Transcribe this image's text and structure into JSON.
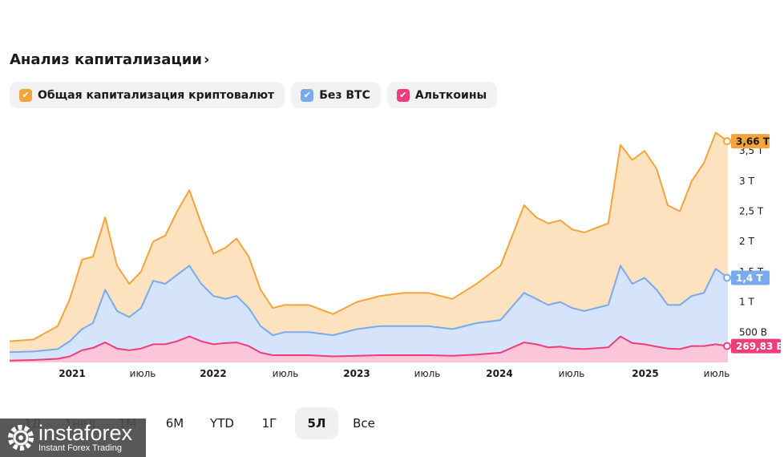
{
  "header": {
    "title": "Анализ капитализации",
    "chevron": "›"
  },
  "legend": [
    {
      "label": "Общая капитализация криптовалют",
      "color": "#f5a33b",
      "checked": true
    },
    {
      "label": "Без BTC",
      "color": "#79a9ef",
      "checked": true
    },
    {
      "label": "Альткоины",
      "color": "#ee3d7a",
      "checked": true
    }
  ],
  "ranges": [
    {
      "label": "1Д",
      "active": false
    },
    {
      "label": "1нед",
      "active": false
    },
    {
      "label": "1М",
      "active": false
    },
    {
      "label": "6М",
      "active": false
    },
    {
      "label": "YTD",
      "active": false
    },
    {
      "label": "1Г",
      "active": false
    },
    {
      "label": "5Л",
      "active": true
    },
    {
      "label": "Все",
      "active": false
    }
  ],
  "watermark": {
    "brand": "instaforex",
    "sub": "Instant Forex Trading"
  },
  "chart_data": {
    "type": "area",
    "x_ticks": [
      "2021",
      "июль",
      "2022",
      "июль",
      "2023",
      "июль",
      "2024",
      "июль",
      "2025",
      "июль"
    ],
    "y_ticks": [
      "500 B",
      "1 T",
      "1,5 T",
      "2 T",
      "2,5 T",
      "3 T",
      "3,5 T"
    ],
    "ylim": [
      0,
      3.9
    ],
    "x": [
      "2020-08",
      "2020-10",
      "2020-12",
      "2021-01",
      "2021-02",
      "2021-03",
      "2021-04",
      "2021-05",
      "2021-06",
      "2021-07",
      "2021-08",
      "2021-09",
      "2021-10",
      "2021-11",
      "2021-12",
      "2022-01",
      "2022-02",
      "2022-03",
      "2022-04",
      "2022-05",
      "2022-06",
      "2022-07",
      "2022-09",
      "2022-11",
      "2023-01",
      "2023-03",
      "2023-05",
      "2023-07",
      "2023-09",
      "2023-11",
      "2024-01",
      "2024-03",
      "2024-04",
      "2024-05",
      "2024-06",
      "2024-07",
      "2024-08",
      "2024-10",
      "2024-11",
      "2024-12",
      "2025-01",
      "2025-02",
      "2025-03",
      "2025-04",
      "2025-05",
      "2025-06",
      "2025-07",
      "2025-08"
    ],
    "series": [
      {
        "name": "Общая капитализация криптовалют",
        "color": "#f5a33b",
        "last_label": "3,66 T",
        "values": [
          0.35,
          0.38,
          0.6,
          1.05,
          1.7,
          1.75,
          2.4,
          1.6,
          1.3,
          1.5,
          2.0,
          2.1,
          2.5,
          2.85,
          2.3,
          1.8,
          1.9,
          2.05,
          1.75,
          1.2,
          0.9,
          0.95,
          0.95,
          0.8,
          1.0,
          1.1,
          1.15,
          1.15,
          1.05,
          1.3,
          1.6,
          2.6,
          2.4,
          2.3,
          2.35,
          2.2,
          2.15,
          2.3,
          3.6,
          3.35,
          3.5,
          3.2,
          2.6,
          2.5,
          3.0,
          3.3,
          3.8,
          3.66
        ]
      },
      {
        "name": "Без BTC",
        "color": "#79a9ef",
        "last_label": "1,4 T",
        "values": [
          0.17,
          0.18,
          0.22,
          0.35,
          0.55,
          0.65,
          1.2,
          0.85,
          0.75,
          0.9,
          1.35,
          1.3,
          1.45,
          1.6,
          1.3,
          1.1,
          1.05,
          1.1,
          0.9,
          0.6,
          0.45,
          0.5,
          0.5,
          0.45,
          0.55,
          0.6,
          0.6,
          0.6,
          0.55,
          0.65,
          0.7,
          1.15,
          1.05,
          0.95,
          1.0,
          0.9,
          0.85,
          0.95,
          1.6,
          1.3,
          1.4,
          1.2,
          0.95,
          0.95,
          1.1,
          1.15,
          1.55,
          1.4
        ]
      },
      {
        "name": "Альткоины",
        "color": "#ee3d7a",
        "last_label": "269,83 B",
        "values": [
          0.03,
          0.04,
          0.06,
          0.1,
          0.2,
          0.24,
          0.33,
          0.23,
          0.2,
          0.23,
          0.3,
          0.3,
          0.35,
          0.43,
          0.35,
          0.3,
          0.32,
          0.33,
          0.27,
          0.16,
          0.12,
          0.12,
          0.12,
          0.1,
          0.11,
          0.12,
          0.12,
          0.12,
          0.11,
          0.13,
          0.16,
          0.33,
          0.3,
          0.25,
          0.26,
          0.23,
          0.22,
          0.25,
          0.43,
          0.32,
          0.3,
          0.26,
          0.23,
          0.22,
          0.27,
          0.27,
          0.3,
          0.27
        ]
      }
    ]
  }
}
